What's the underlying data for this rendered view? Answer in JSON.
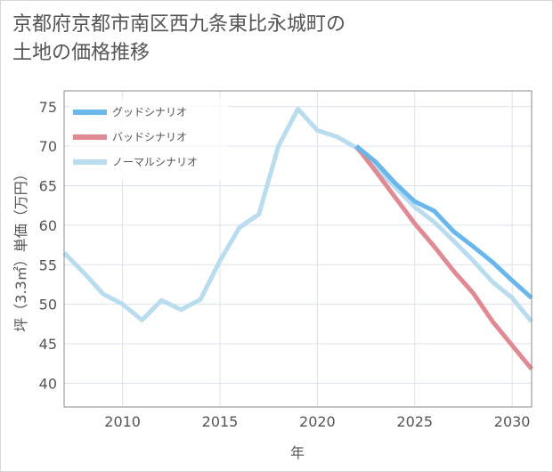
{
  "chart_data": {
    "type": "line",
    "title_line1": "京都府京都市南区西九条東比永城町の",
    "title_line2": "土地の価格推移",
    "xlabel": "年",
    "ylabel": "坪（3.3㎡）単価（万円）",
    "xlim": [
      2007,
      2031
    ],
    "ylim": [
      37,
      77
    ],
    "xticks": [
      2010,
      2015,
      2020,
      2025,
      2030
    ],
    "yticks": [
      40,
      45,
      50,
      55,
      60,
      65,
      70,
      75
    ],
    "series": [
      {
        "name": "グッドシナリオ",
        "color": "#6ab7ec",
        "x": [
          2022,
          2023,
          2024,
          2025,
          2026,
          2027,
          2028,
          2029,
          2030,
          2031
        ],
        "y": [
          70.0,
          68.0,
          65.3,
          63.0,
          61.8,
          59.2,
          57.3,
          55.3,
          53.0,
          50.8
        ]
      },
      {
        "name": "バッドシナリオ",
        "color": "#e08a94",
        "x": [
          2022,
          2023,
          2024,
          2025,
          2026,
          2027,
          2028,
          2029,
          2030,
          2031
        ],
        "y": [
          70.0,
          66.8,
          63.5,
          60.2,
          57.3,
          54.2,
          51.4,
          47.8,
          44.8,
          41.8
        ]
      },
      {
        "name": "ノーマルシナリオ",
        "color": "#b9dcee",
        "x": [
          2007,
          2008,
          2009,
          2010,
          2011,
          2012,
          2013,
          2014,
          2015,
          2016,
          2017,
          2018,
          2019,
          2020,
          2021,
          2022,
          2023,
          2024,
          2025,
          2026,
          2027,
          2028,
          2029,
          2030,
          2031
        ],
        "y": [
          56.5,
          54.0,
          51.3,
          50.0,
          48.0,
          50.5,
          49.3,
          50.6,
          55.5,
          59.7,
          61.4,
          70.0,
          74.7,
          72.0,
          71.2,
          69.8,
          67.3,
          64.8,
          62.3,
          60.4,
          58.0,
          55.5,
          52.8,
          50.8,
          47.8
        ]
      }
    ]
  }
}
